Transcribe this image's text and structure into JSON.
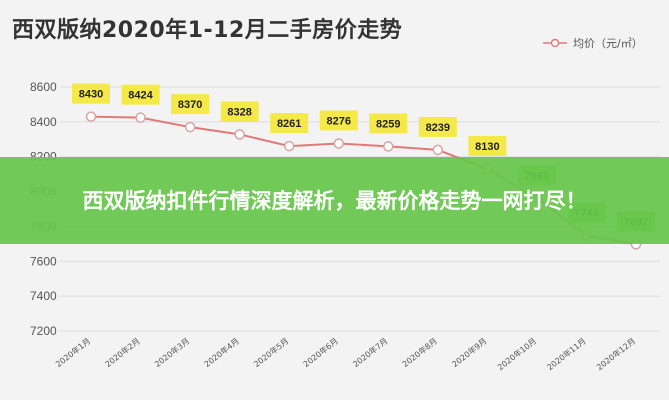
{
  "banner": {
    "text": "西双版纳扣件行情深度解析，最新价格走势一网打尽！"
  },
  "chart_data": {
    "type": "line",
    "title": "西双版纳2020年1-12月二手房价走势",
    "categories": [
      "2020年1月",
      "2020年2月",
      "2020年3月",
      "2020年4月",
      "2020年5月",
      "2020年6月",
      "2020年7月",
      "2020年8月",
      "2020年9月",
      "2020年10月",
      "2020年11月",
      "2020年12月"
    ],
    "series": [
      {
        "name": "均价（元/㎡）",
        "values": [
          8430,
          8424,
          8370,
          8328,
          8261,
          8276,
          8259,
          8239,
          8130,
          7961,
          7749,
          7697
        ],
        "labels": [
          "8430",
          "8424",
          "8370",
          "8328",
          "8261",
          "8276",
          "8259",
          "8239",
          "8130",
          "7961",
          "7749",
          "7697"
        ]
      }
    ],
    "yticks": [
      7200,
      7400,
      7600,
      7800,
      8000,
      8200,
      8400,
      8600
    ],
    "ylim": [
      7200,
      8600
    ],
    "grid": true,
    "legend_position": "top-right",
    "colors": {
      "line": "#e07a7a",
      "marker_fill": "#ffffff",
      "label_bg": "#f5e94a",
      "label_bg_late": "#8fd96b",
      "grid": "#dcdcdc"
    }
  }
}
